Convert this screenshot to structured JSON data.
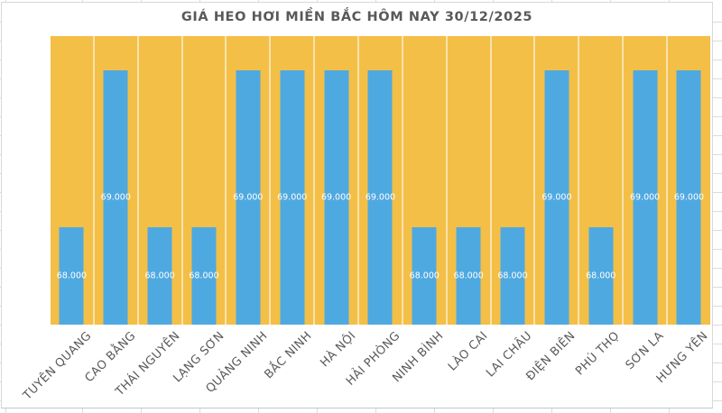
{
  "chart_data": {
    "type": "bar",
    "title": "GIÁ HEO HƠI MIỀN BẮC HÔM NAY 30/12/2025",
    "categories": [
      "TUYÊN QUANG",
      "CAO BẰNG",
      "THÁI NGUYÊN",
      "LẠNG SƠN",
      "QUẢNG NINH",
      "BẮC NINH",
      "HÀ NỘI",
      "HẢI PHÒNG",
      "NINH BÌNH",
      "LÀO CAI",
      "LAI CHÂU",
      "ĐIỆN BIÊN",
      "PHÚ THỌ",
      "SƠN LA",
      "HƯNG YÊN"
    ],
    "values": [
      68000,
      69000,
      68000,
      68000,
      69000,
      69000,
      69000,
      69000,
      68000,
      68000,
      68000,
      69000,
      68000,
      69000,
      69000
    ],
    "value_labels": [
      "68.000",
      "69.000",
      "68.000",
      "68.000",
      "69.000",
      "69.000",
      "69.000",
      "69.000",
      "68.000",
      "68.000",
      "68.000",
      "69.000",
      "68.000",
      "69.000",
      "69.000"
    ],
    "xlabel": "",
    "ylabel": "",
    "ylim": [
      67380,
      69220
    ],
    "yaxis_visible": false,
    "grid": false,
    "legend_position": "none",
    "data_labels_position": "inside-center",
    "x_label_rotation_deg": 45,
    "colors": {
      "bar": "#4fa9e1",
      "plot_background": "#f3bf47",
      "slot_separator": "#fae2ac",
      "title_text": "#595959",
      "axis_text": "#595959",
      "data_label_text": "#ffffff",
      "chart_border": "#d6d8da",
      "sheet_gridline": "#dadcde"
    }
  }
}
